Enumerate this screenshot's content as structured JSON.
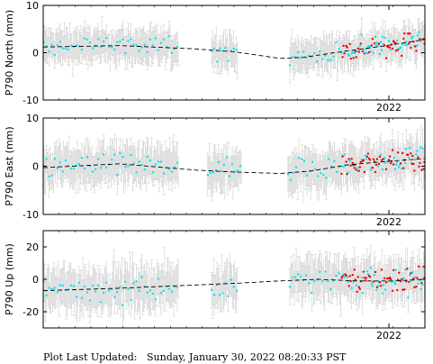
{
  "footer": {
    "label": "Plot Last Updated:",
    "value": "Sunday, January 30, 2022 08:20:33 PST"
  },
  "colors": {
    "old_points": "#00e5ee",
    "recent_points": "#ee0000",
    "error_bars": "#cccccc",
    "trend": "#000000"
  },
  "chart_data": [
    {
      "type": "scatter",
      "ylabel": "P790 North (mm)",
      "ylim": [
        -10,
        10
      ],
      "yticks": [
        -10,
        0,
        10
      ],
      "xtick_labels": [
        "2022"
      ],
      "error_bar_mm": 3,
      "segments": [
        {
          "start": 0.0,
          "end": 0.355
        },
        {
          "start": 0.44,
          "end": 0.51
        },
        {
          "start": 0.645,
          "end": 1.0
        }
      ],
      "trend": [
        [
          0.0,
          1.2
        ],
        [
          0.2,
          1.5
        ],
        [
          0.4,
          0.8
        ],
        [
          0.5,
          0.2
        ],
        [
          0.62,
          -1.2
        ],
        [
          0.68,
          -1.0
        ],
        [
          0.78,
          0.2
        ],
        [
          0.9,
          1.5
        ],
        [
          1.0,
          2.8
        ]
      ],
      "noise": 1.5,
      "red_start": 0.78
    },
    {
      "type": "scatter",
      "ylabel": "P790 East (mm)",
      "ylim": [
        -10,
        10
      ],
      "yticks": [
        -10,
        0,
        10
      ],
      "xtick_labels": [
        "2022"
      ],
      "error_bar_mm": 3.5,
      "segments": [
        {
          "start": 0.0,
          "end": 0.355
        },
        {
          "start": 0.43,
          "end": 0.52
        },
        {
          "start": 0.64,
          "end": 1.0
        }
      ],
      "trend": [
        [
          0.0,
          -0.3
        ],
        [
          0.2,
          0.5
        ],
        [
          0.4,
          -0.8
        ],
        [
          0.5,
          -1.2
        ],
        [
          0.62,
          -1.5
        ],
        [
          0.7,
          -1.0
        ],
        [
          0.8,
          0.3
        ],
        [
          0.9,
          1.0
        ],
        [
          1.0,
          1.6
        ]
      ],
      "noise": 1.7,
      "red_start": 0.78
    },
    {
      "type": "scatter",
      "ylabel": "P790 Up (mm)",
      "ylim": [
        -30,
        30
      ],
      "yticks": [
        -20,
        0,
        20
      ],
      "xtick_labels": [
        "2022"
      ],
      "error_bar_mm": 11,
      "segments": [
        {
          "start": 0.0,
          "end": 0.355
        },
        {
          "start": 0.44,
          "end": 0.51
        },
        {
          "start": 0.645,
          "end": 1.0
        }
      ],
      "trend": [
        [
          0.0,
          -7.0
        ],
        [
          0.2,
          -5.5
        ],
        [
          0.4,
          -3.5
        ],
        [
          0.5,
          -2.5
        ],
        [
          0.62,
          -1.0
        ],
        [
          0.72,
          0.0
        ],
        [
          0.82,
          -1.0
        ],
        [
          0.92,
          -1.0
        ],
        [
          1.0,
          0.0
        ]
      ],
      "noise": 6.0,
      "red_start": 0.78
    }
  ]
}
